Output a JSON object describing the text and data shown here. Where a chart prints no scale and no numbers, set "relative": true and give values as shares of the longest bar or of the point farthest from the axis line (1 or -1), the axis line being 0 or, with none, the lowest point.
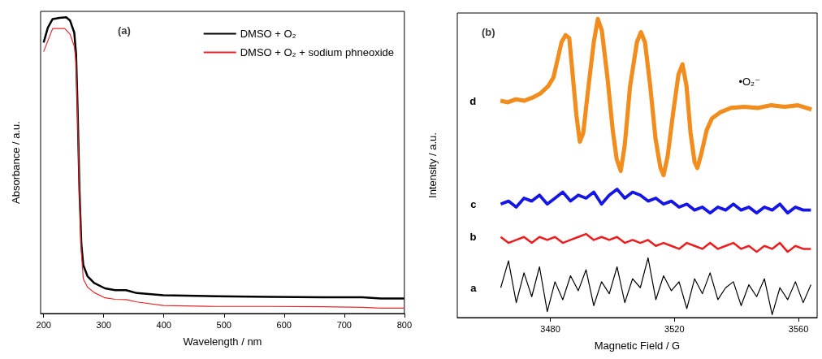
{
  "chart_data": [
    {
      "type": "line",
      "title": "(a)",
      "xlabel": "Wavelength / nm",
      "ylabel": "Absorbance / a.u.",
      "relative": true,
      "legend": "top right",
      "xlim": [
        195,
        800
      ],
      "xticks": [
        200,
        300,
        400,
        500,
        600,
        700,
        800
      ],
      "series": [
        {
          "name": "DMSO + O₂",
          "color": "#000000",
          "x": [
            200,
            207,
            215,
            226.5,
            237.5,
            244,
            251,
            254,
            256.5,
            259.6,
            262.7,
            266,
            273,
            284,
            302,
            319,
            337,
            355,
            399,
            487,
            575.5,
            664,
            730,
            761,
            800
          ],
          "values": [
            0.915,
            0.965,
            0.994,
            0.998,
            1.0,
            0.989,
            0.948,
            0.875,
            0.692,
            0.418,
            0.236,
            0.163,
            0.126,
            0.103,
            0.085,
            0.079,
            0.079,
            0.069,
            0.062,
            0.058,
            0.056,
            0.055,
            0.055,
            0.051,
            0.051
          ]
        },
        {
          "name": "DMSO + O₂ + sodium phneoxide",
          "color": "#e8262a",
          "x": [
            200,
            215,
            235,
            244,
            251,
            254,
            256.5,
            259.6,
            262.7,
            266,
            273,
            284,
            302,
            319,
            337,
            355,
            399,
            487,
            575.5,
            664,
            730,
            761,
            800
          ],
          "values": [
            0.884,
            0.962,
            0.962,
            0.943,
            0.902,
            0.847,
            0.665,
            0.4,
            0.208,
            0.117,
            0.089,
            0.071,
            0.053,
            0.048,
            0.047,
            0.039,
            0.027,
            0.024,
            0.024,
            0.023,
            0.021,
            0.018,
            0.018
          ]
        }
      ]
    },
    {
      "type": "line",
      "title": "(b)",
      "xlabel": "Magnetic Field / G",
      "ylabel": "Intensity / a.u.",
      "relative": true,
      "xlim": [
        3450,
        3566
      ],
      "xticks": [
        3480,
        3520,
        3560
      ],
      "annotations": [
        "•O₂⁻"
      ],
      "series": [
        {
          "name": "d",
          "color": "#f28c1c",
          "x": [
            3463.9,
            3466.3,
            3468.9,
            3471.5,
            3474.1,
            3476.7,
            3479.3,
            3481.0,
            3482.3,
            3483.6,
            3484.9,
            3486.1,
            3487.1,
            3488.4,
            3489.5,
            3490.6,
            3492.3,
            3494.0,
            3495.3,
            3496.6,
            3498.4,
            3500.1,
            3501.4,
            3502.7,
            3504.0,
            3505.7,
            3507.9,
            3509.2,
            3510.5,
            3512.2,
            3513.9,
            3515.5,
            3516.5,
            3517.8,
            3519.6,
            3521.3,
            3522.6,
            3523.9,
            3525.2,
            3526.5,
            3527.4,
            3528.7,
            3530.4,
            3532.1,
            3534.7,
            3538.2,
            3542.5,
            3546.8,
            3551.2,
            3555.5,
            3559.8,
            3564.2
          ],
          "values": [
            0.726,
            0.721,
            0.731,
            0.726,
            0.736,
            0.75,
            0.775,
            0.804,
            0.863,
            0.922,
            0.946,
            0.936,
            0.824,
            0.677,
            0.589,
            0.618,
            0.775,
            0.922,
            1.0,
            0.961,
            0.804,
            0.628,
            0.53,
            0.491,
            0.579,
            0.775,
            0.922,
            0.956,
            0.922,
            0.775,
            0.599,
            0.501,
            0.477,
            0.54,
            0.687,
            0.814,
            0.848,
            0.775,
            0.618,
            0.521,
            0.501,
            0.55,
            0.628,
            0.667,
            0.687,
            0.702,
            0.706,
            0.702,
            0.711,
            0.706,
            0.711,
            0.697
          ]
        },
        {
          "name": "c",
          "color": "#1515e6",
          "x": [
            3464,
            3466.5,
            3469,
            3471.5,
            3474,
            3476.5,
            3479,
            3481.5,
            3484,
            3486.5,
            3489,
            3491.5,
            3494,
            3496.5,
            3499,
            3501.5,
            3504,
            3506.5,
            3509,
            3511.5,
            3514,
            3516.5,
            3519,
            3521.5,
            3524,
            3526.5,
            3529,
            3531.5,
            3534,
            3536.5,
            3539,
            3541.5,
            3544,
            3546.5,
            3549,
            3551.5,
            3554,
            3556.5,
            3559,
            3561.5,
            3564
          ],
          "values": [
            0.38,
            0.39,
            0.37,
            0.4,
            0.39,
            0.41,
            0.38,
            0.4,
            0.42,
            0.39,
            0.41,
            0.4,
            0.42,
            0.38,
            0.41,
            0.43,
            0.4,
            0.42,
            0.41,
            0.39,
            0.4,
            0.38,
            0.39,
            0.37,
            0.38,
            0.36,
            0.37,
            0.35,
            0.37,
            0.36,
            0.38,
            0.36,
            0.37,
            0.35,
            0.37,
            0.36,
            0.38,
            0.35,
            0.37,
            0.36,
            0.36
          ]
        },
        {
          "name": "b",
          "color": "#ee1c1c",
          "x": [
            3464,
            3466.5,
            3469,
            3471.5,
            3474,
            3476.5,
            3479,
            3481.5,
            3484,
            3486.5,
            3489,
            3491.5,
            3494,
            3496.5,
            3499,
            3501.5,
            3504,
            3506.5,
            3509,
            3511.5,
            3514,
            3516.5,
            3519,
            3521.5,
            3524,
            3526.5,
            3529,
            3531.5,
            3534,
            3536.5,
            3539,
            3541.5,
            3544,
            3546.5,
            3549,
            3551.5,
            3554,
            3556.5,
            3559,
            3561.5,
            3564
          ],
          "values": [
            0.27,
            0.25,
            0.26,
            0.27,
            0.25,
            0.27,
            0.26,
            0.27,
            0.25,
            0.26,
            0.27,
            0.28,
            0.26,
            0.27,
            0.26,
            0.27,
            0.25,
            0.26,
            0.25,
            0.26,
            0.24,
            0.25,
            0.24,
            0.23,
            0.25,
            0.24,
            0.23,
            0.25,
            0.23,
            0.24,
            0.25,
            0.23,
            0.24,
            0.22,
            0.24,
            0.23,
            0.25,
            0.22,
            0.24,
            0.23,
            0.23
          ]
        },
        {
          "name": "a",
          "color": "#000000",
          "x": [
            3464,
            3466.5,
            3469,
            3471.5,
            3474,
            3476.5,
            3479,
            3481.5,
            3484,
            3486.5,
            3489,
            3491.5,
            3494,
            3496.5,
            3499,
            3501.5,
            3504,
            3506.5,
            3509,
            3511.5,
            3514,
            3516.5,
            3519,
            3521.5,
            3524,
            3526.5,
            3529,
            3531.5,
            3534,
            3536.5,
            3539,
            3541.5,
            3544,
            3546.5,
            3549,
            3551.5,
            3554,
            3556.5,
            3559,
            3561.5,
            3564
          ],
          "values": [
            0.1,
            0.19,
            0.05,
            0.15,
            0.07,
            0.17,
            0.02,
            0.12,
            0.06,
            0.14,
            0.09,
            0.16,
            0.04,
            0.12,
            0.08,
            0.17,
            0.05,
            0.13,
            0.1,
            0.2,
            0.06,
            0.14,
            0.09,
            0.12,
            0.03,
            0.13,
            0.08,
            0.15,
            0.06,
            0.1,
            0.12,
            0.04,
            0.11,
            0.07,
            0.13,
            0.01,
            0.1,
            0.06,
            0.12,
            0.05,
            0.11
          ]
        }
      ]
    }
  ]
}
